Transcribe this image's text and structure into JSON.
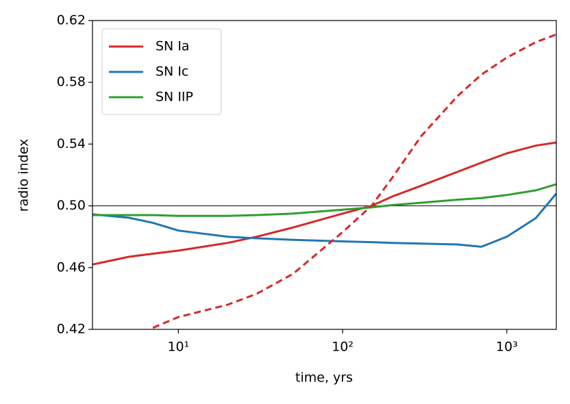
{
  "chart_data": {
    "type": "line",
    "xlabel": "time, yrs",
    "ylabel": "radio index",
    "x": [
      3,
      5,
      7,
      10,
      20,
      30,
      50,
      100,
      150,
      200,
      300,
      500,
      700,
      1000,
      1500,
      2000
    ],
    "xscale": "log",
    "xlim": [
      3,
      2000
    ],
    "xticks": [
      {
        "value": 10,
        "label": "10¹"
      },
      {
        "value": 100,
        "label": "10²"
      },
      {
        "value": 1000,
        "label": "10³"
      }
    ],
    "ylim": [
      0.42,
      0.62
    ],
    "yticks": [
      0.42,
      0.46,
      {
        "value": 0.5,
        "label": "0.50"
      },
      0.54,
      0.58,
      0.62
    ],
    "hline": 0.5,
    "legend": "upper left",
    "series": [
      {
        "name": "SN Ia",
        "color": "#d62728",
        "values": [
          0.462,
          0.467,
          0.469,
          0.471,
          0.476,
          0.48,
          0.486,
          0.495,
          0.5,
          0.506,
          0.513,
          0.522,
          0.528,
          0.534,
          0.539,
          0.541
        ]
      },
      {
        "name": "SN Ic",
        "color": "#1f77b4",
        "values": [
          0.4945,
          0.4923,
          0.489,
          0.484,
          0.48,
          0.479,
          0.478,
          0.477,
          0.4765,
          0.476,
          0.4755,
          0.475,
          0.4735,
          0.48,
          0.492,
          0.508
        ]
      },
      {
        "name": "SN IIP",
        "color": "#2ca02c",
        "values": [
          0.494,
          0.494,
          0.494,
          0.4935,
          0.4935,
          0.494,
          0.495,
          0.4975,
          0.499,
          0.5005,
          0.502,
          0.504,
          0.505,
          0.507,
          0.51,
          0.514
        ]
      },
      {
        "color": "#d62728",
        "dashed": true,
        "values": [
          null,
          null,
          0.421,
          0.428,
          0.436,
          0.443,
          0.456,
          0.483,
          0.5,
          0.518,
          0.545,
          0.571,
          0.585,
          0.596,
          0.606,
          0.611
        ]
      }
    ]
  }
}
